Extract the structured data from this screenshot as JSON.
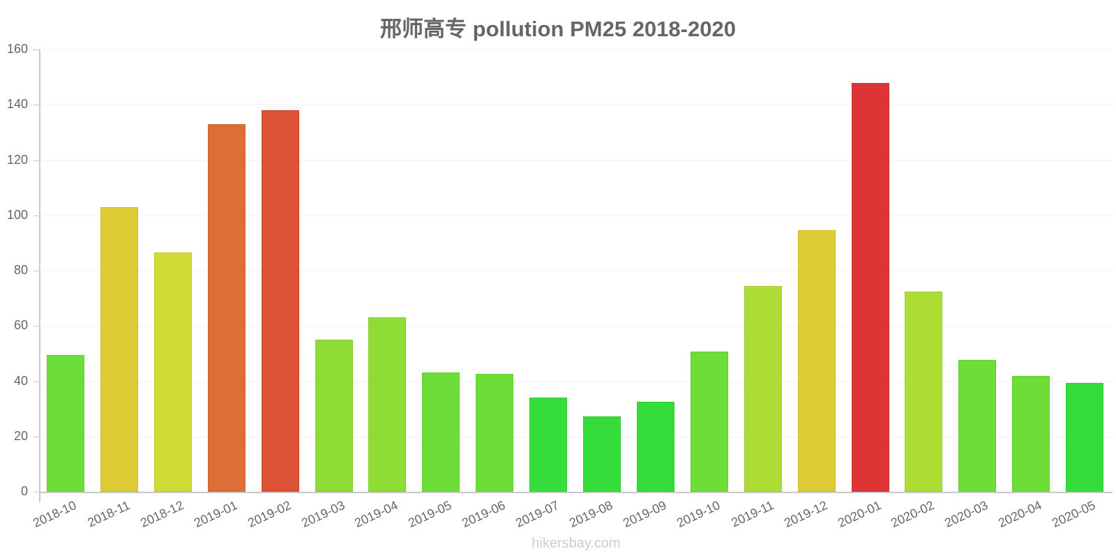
{
  "title": "邢师高专 pollution PM25 2018-2020",
  "watermark": "hikersbay.com",
  "y_ticks": [
    "0",
    "20",
    "40",
    "60",
    "80",
    "100",
    "120",
    "140",
    "160"
  ],
  "chart_data": {
    "type": "bar",
    "title": "邢师高专 pollution PM25 2018-2020",
    "xlabel": "",
    "ylabel": "",
    "ylim": [
      0,
      160
    ],
    "grid": true,
    "legend": null,
    "categories": [
      "2018-10",
      "2018-11",
      "2018-12",
      "2019-01",
      "2019-02",
      "2019-03",
      "2019-04",
      "2019-05",
      "2019-06",
      "2019-07",
      "2019-08",
      "2019-09",
      "2019-10",
      "2019-11",
      "2019-12",
      "2020-01",
      "2020-02",
      "2020-03",
      "2020-04",
      "2020-05"
    ],
    "values": [
      49.4,
      103,
      86.6,
      133,
      138,
      55.1,
      63,
      43.1,
      42.7,
      34,
      27.3,
      32.6,
      50.8,
      74.4,
      94.6,
      148,
      72.5,
      47.7,
      41.8,
      39.3
    ],
    "colors": [
      "#6ddd37",
      "#dccb35",
      "#d0dc35",
      "#dd6e35",
      "#dd5135",
      "#8ddd35",
      "#8ddd35",
      "#6ddd37",
      "#6ddd37",
      "#35dd3a",
      "#35dd3a",
      "#35dd3a",
      "#6ddd37",
      "#addd35",
      "#dccb35",
      "#dd3535",
      "#addd35",
      "#6ddd37",
      "#6ddd37",
      "#35dd3a"
    ]
  }
}
